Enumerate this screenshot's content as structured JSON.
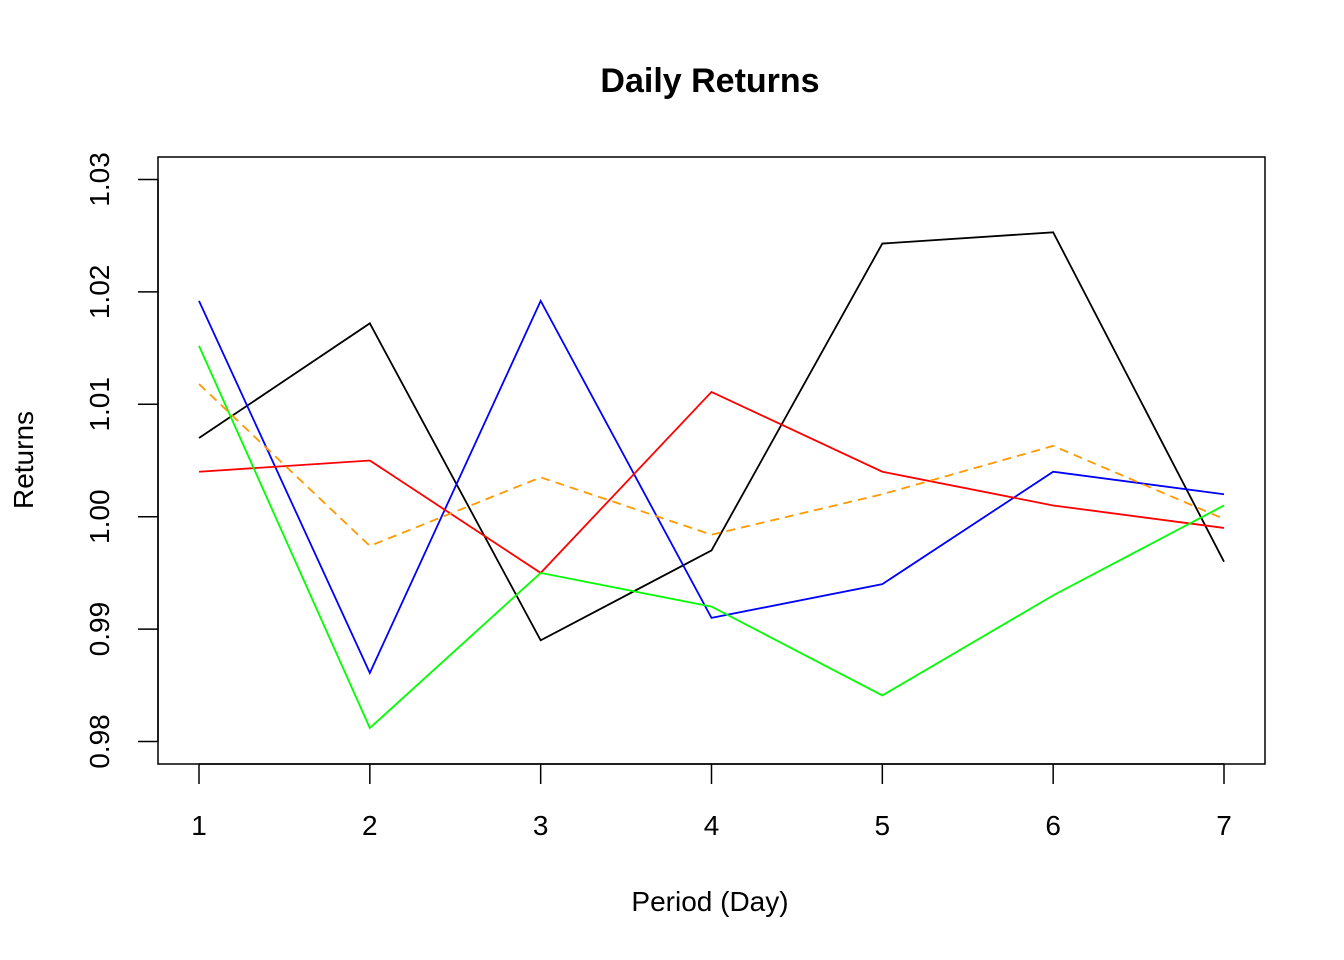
{
  "chart_data": {
    "type": "line",
    "title": "Daily Returns",
    "xlabel": "Period (Day)",
    "ylabel": "Returns",
    "x": [
      1,
      2,
      3,
      4,
      5,
      6,
      7
    ],
    "x_ticks": [
      "1",
      "2",
      "3",
      "4",
      "5",
      "6",
      "7"
    ],
    "y_ticks": [
      "0.98",
      "0.99",
      "1.00",
      "1.01",
      "1.02",
      "1.03"
    ],
    "xlim": [
      0.76,
      7.24
    ],
    "ylim": [
      0.978,
      1.032
    ],
    "grid": false,
    "series": [
      {
        "color": "#000000",
        "dash": "solid",
        "values": [
          1.007,
          1.0172,
          0.989,
          0.997,
          1.0243,
          1.0253,
          0.996
        ]
      },
      {
        "color": "#0000ff",
        "dash": "solid",
        "values": [
          1.0192,
          0.9861,
          1.0192,
          0.991,
          0.994,
          1.004,
          1.002
        ]
      },
      {
        "color": "#ff0000",
        "dash": "solid",
        "values": [
          1.004,
          1.005,
          0.995,
          1.0111,
          1.004,
          1.001,
          0.999
        ]
      },
      {
        "color": "#00ff00",
        "dash": "solid",
        "values": [
          1.0152,
          0.9812,
          0.995,
          0.992,
          0.9841,
          0.993,
          1.001
        ]
      },
      {
        "color": "#ff9900",
        "dash": "dashed",
        "values": [
          1.0118,
          0.9974,
          1.0035,
          0.9984,
          1.002,
          1.0063,
          0.9998
        ]
      }
    ]
  }
}
